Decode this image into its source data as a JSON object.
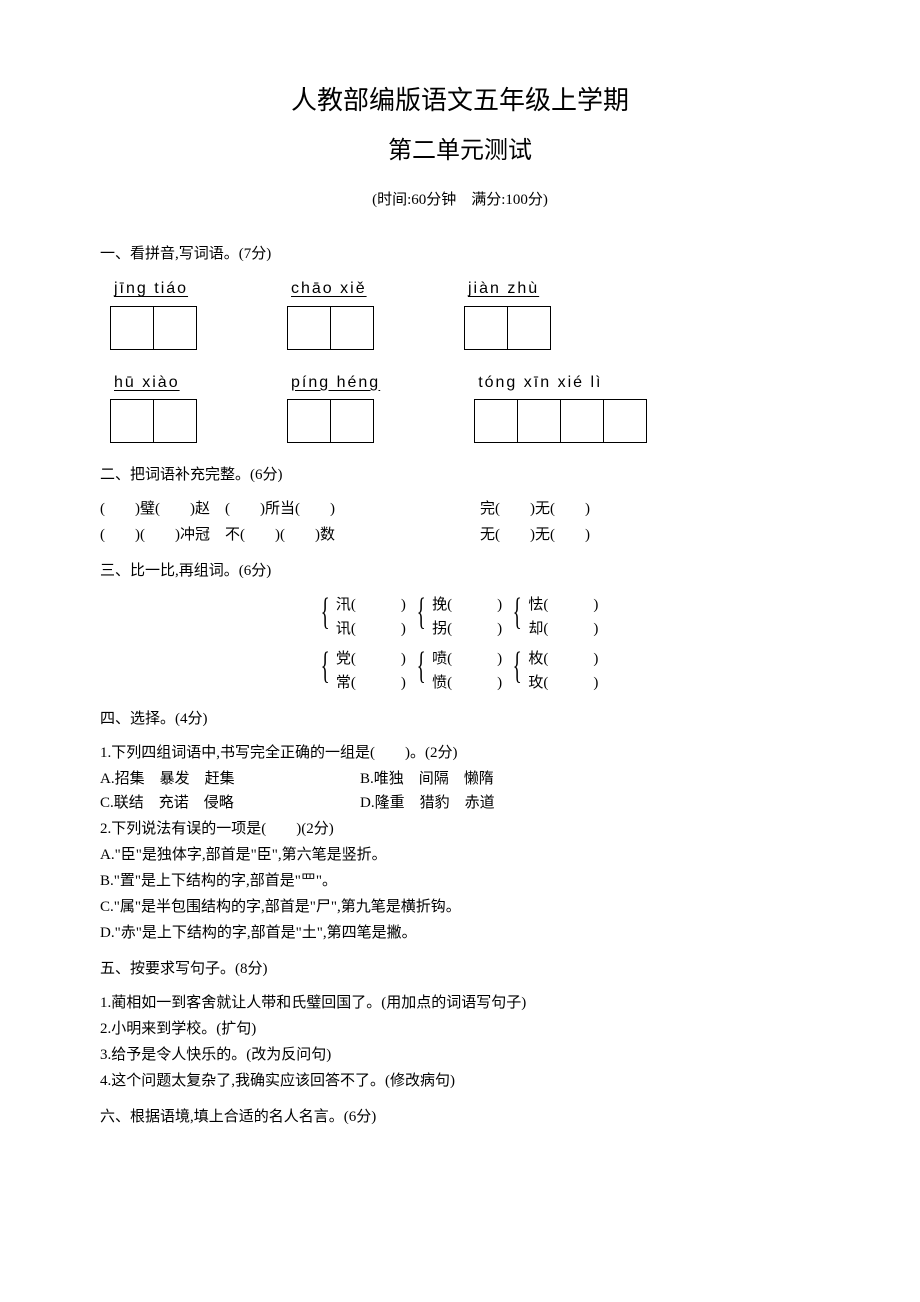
{
  "header": {
    "title_main": "人教部编版语文五年级上学期",
    "title_sub": "第二单元测试",
    "meta": "(时间:60分钟　满分:100分)"
  },
  "sec1": {
    "head": "一、看拼音,写词语。(7分)",
    "row1": [
      {
        "pinyin": "jīng  tiáo",
        "boxes": 2,
        "underline": true
      },
      {
        "pinyin": "chāo  xiě",
        "boxes": 2,
        "underline": true
      },
      {
        "pinyin": "jiàn   zhù",
        "boxes": 2,
        "underline": true
      }
    ],
    "row2": [
      {
        "pinyin": "hū   xiào",
        "boxes": 2,
        "underline": true
      },
      {
        "pinyin": "píng héng",
        "boxes": 2,
        "underline": true
      },
      {
        "pinyin": "tóng  xīn  xié   lì",
        "boxes": 4,
        "underline": false
      }
    ]
  },
  "sec2": {
    "head": "二、把词语补充完整。(6分)",
    "rows": [
      {
        "left": "(　　)璧(　　)赵　(　　)所当(　　)",
        "right": "完(　　)无(　　)"
      },
      {
        "left": "(　　)(　　)冲冠　不(　　)(　　)数",
        "right": "无(　　)无(　　)"
      }
    ]
  },
  "sec3": {
    "head": "三、比一比,再组词。(6分)",
    "grid": [
      [
        {
          "a": "汛(　　　)",
          "b": "讯(　　　)"
        },
        {
          "a": "挽(　　　)",
          "b": "拐(　　　)"
        },
        {
          "a": "怯(　　　)",
          "b": "却(　　　)"
        }
      ],
      [
        {
          "a": "党(　　　)",
          "b": "常(　　　)"
        },
        {
          "a": "喷(　　　)",
          "b": "愤(　　　)"
        },
        {
          "a": "枚(　　　)",
          "b": "玫(　　　)"
        }
      ]
    ]
  },
  "sec4": {
    "head": "四、选择。(4分)",
    "q1": {
      "stem": "1.下列四组词语中,书写完全正确的一组是(　　)。(2分)",
      "opts": {
        "A": "A.招集　暴发　赶集",
        "B": "B.唯独　间隔　懒隋",
        "C": "C.联结　充诺　侵略",
        "D": "D.隆重　猎豹　赤道"
      }
    },
    "q2": {
      "stem": "2.下列说法有误的一项是(　　)(2分)",
      "opts": {
        "A": "A.\"臣\"是独体字,部首是\"臣\",第六笔是竖折。",
        "B": "B.\"置\"是上下结构的字,部首是\"罒\"。",
        "C": "C.\"属\"是半包围结构的字,部首是\"尸\",第九笔是横折钩。",
        "D": "D.\"赤\"是上下结构的字,部首是\"土\",第四笔是撇。"
      }
    }
  },
  "sec5": {
    "head": "五、按要求写句子。(8分)",
    "items": [
      "1.蔺相如一到客舍就让人带和氏璧回国了。(用加点的词语写句子)",
      "2.小明来到学校。(扩句)",
      "3.给予是令人快乐的。(改为反问句)",
      "4.这个问题太复杂了,我确实应该回答不了。(修改病句)"
    ]
  },
  "sec6": {
    "head": "六、根据语境,填上合适的名人名言。(6分)"
  }
}
